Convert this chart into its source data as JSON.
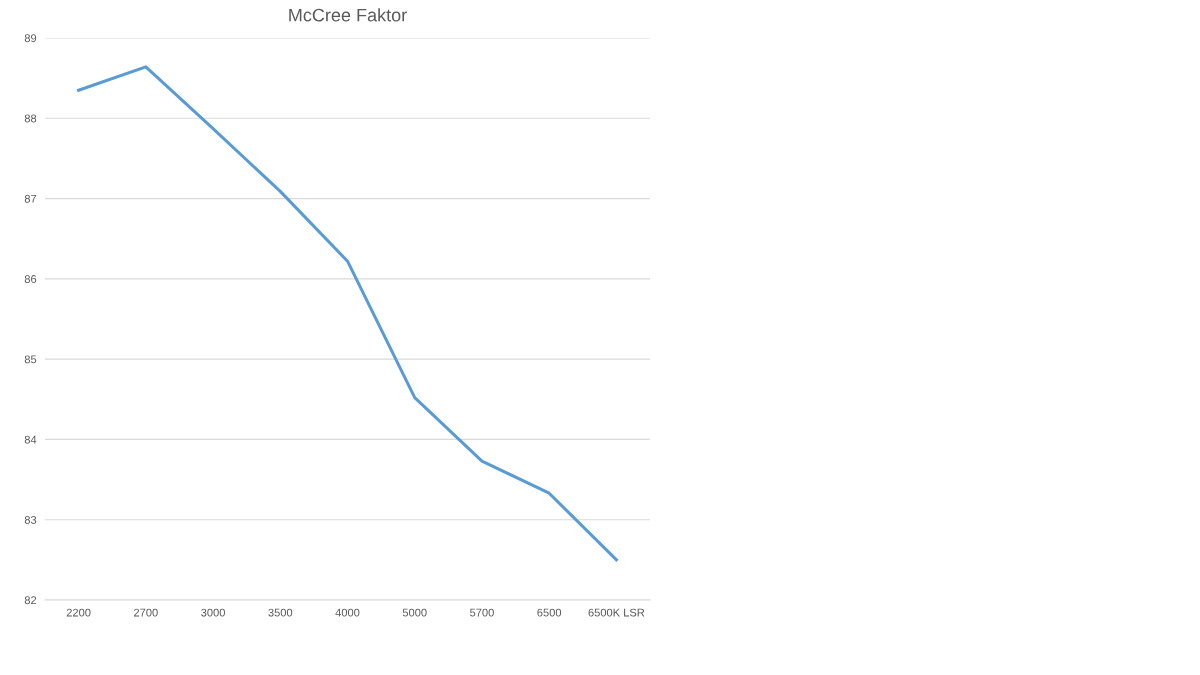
{
  "chart_data": {
    "type": "line",
    "title": "McCree Faktor",
    "categories": [
      "2200",
      "2700",
      "3000",
      "3500",
      "4000",
      "5000",
      "5700",
      "6500",
      "6500K LSR"
    ],
    "series": [
      {
        "color": "#5b9bd5",
        "values": [
          88.35,
          88.64,
          87.87,
          87.09,
          86.22,
          84.52,
          83.73,
          83.33,
          82.5
        ]
      }
    ],
    "ylim": [
      82,
      89
    ],
    "yticks": [
      82,
      83,
      84,
      85,
      86,
      87,
      88,
      89
    ],
    "grid": "y",
    "marker": "none"
  }
}
